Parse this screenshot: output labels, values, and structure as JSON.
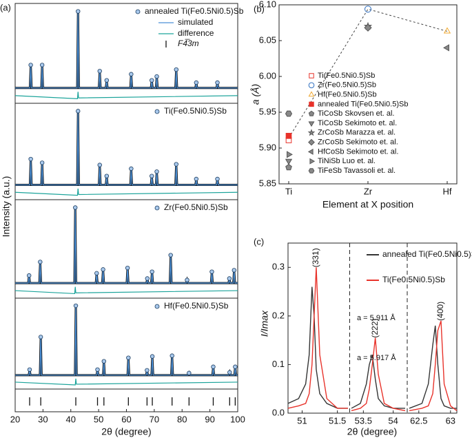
{
  "chart_data": [
    {
      "type": "xrd",
      "panel_label": "(a)",
      "xlabel": "2θ (degree)",
      "ylabel": "Intensity (a.u.)",
      "xlim": [
        20,
        100
      ],
      "xticks": [
        20,
        30,
        40,
        50,
        60,
        70,
        80,
        90,
        100
      ],
      "ylim": [
        -0.2,
        1.05
      ],
      "subplots": [
        {
          "observed": {
            "name": "annealed Ti(Fe0.5Ni0.5)Sb",
            "color": "#a8c8ec",
            "x": [
              25.6,
              29.7,
              42.6,
              50.4,
              52.9,
              61.7,
              69.1,
              70.9,
              77.9,
              85.1,
              92.7
            ],
            "values": [
              0.3,
              0.3,
              1,
              0.22,
              0.1,
              0.18,
              0.1,
              0.15,
              0.24,
              0.07,
              0.07
            ]
          },
          "simulated": {
            "name": "simulated",
            "color": "#4a8fd6",
            "x": [
              20,
              25.3,
              25.6,
              25.9,
              29.4,
              29.7,
              30.0,
              42.3,
              42.6,
              42.9,
              50.1,
              50.4,
              50.7,
              52.6,
              52.9,
              53.2,
              61.4,
              61.7,
              62.0,
              68.8,
              69.1,
              69.4,
              70.6,
              70.9,
              71.2,
              77.6,
              77.9,
              78.2,
              84.8,
              85.1,
              85.4,
              92.4,
              92.7,
              93.0,
              100
            ],
            "values": [
              0,
              0,
              0.3,
              0,
              0,
              0.3,
              0,
              0,
              1,
              0,
              0,
              0.22,
              0,
              0,
              0.1,
              0,
              0,
              0.18,
              0,
              0,
              0.1,
              0,
              0,
              0.15,
              0,
              0,
              0.24,
              0,
              0,
              0.07,
              0,
              0,
              0.07,
              0,
              0
            ]
          },
          "difference": {
            "name": "difference",
            "color": "#1aa39a",
            "x": [
              20,
              42.4,
              42.6,
              42.8,
              100
            ],
            "values": [
              -0.1,
              -0.14,
              -0.05,
              -0.13,
              -0.1
            ]
          }
        },
        {
          "observed": {
            "name": "Ti(Fe0.5Ni0.5)Sb",
            "color": "#a8c8ec",
            "x": [
              25.6,
              29.7,
              42.6,
              50.4,
              52.9,
              61.7,
              69.1,
              70.9,
              77.9,
              85.1,
              92.7
            ],
            "values": [
              0.35,
              0.3,
              1,
              0.27,
              0.12,
              0.22,
              0.12,
              0.18,
              0.28,
              0.08,
              0.08
            ]
          },
          "simulated": {
            "color": "#4a8fd6",
            "x": [
              20,
              25.3,
              25.6,
              25.9,
              29.4,
              29.7,
              30.0,
              42.3,
              42.6,
              42.9,
              50.1,
              50.4,
              50.7,
              52.6,
              52.9,
              53.2,
              61.4,
              61.7,
              62.0,
              68.8,
              69.1,
              69.4,
              70.6,
              70.9,
              71.2,
              77.6,
              77.9,
              78.2,
              84.8,
              85.1,
              85.4,
              92.4,
              92.7,
              93.0,
              100
            ],
            "values": [
              0,
              0,
              0.35,
              0,
              0,
              0.3,
              0,
              0,
              1,
              0,
              0,
              0.27,
              0,
              0,
              0.12,
              0,
              0,
              0.22,
              0,
              0,
              0.12,
              0,
              0,
              0.18,
              0,
              0,
              0.28,
              0,
              0,
              0.08,
              0,
              0,
              0.08,
              0,
              0
            ]
          },
          "difference": {
            "color": "#1aa39a",
            "x": [
              20,
              42.4,
              42.6,
              42.8,
              100
            ],
            "values": [
              -0.1,
              -0.14,
              -0.05,
              -0.13,
              -0.1
            ]
          }
        },
        {
          "observed": {
            "name": "Zr(Fe0.5Ni0.5)Sb",
            "color": "#a8c8ec",
            "x": [
              25.0,
              29.0,
              41.6,
              49.3,
              51.6,
              60.4,
              67.5,
              69.2,
              75.9,
              81.8,
              90.7,
              97.0,
              98.7
            ],
            "values": [
              0.1,
              0.28,
              1,
              0.13,
              0.18,
              0.2,
              0.06,
              0.15,
              0.37,
              0.04,
              0.15,
              0.06,
              0.17
            ]
          },
          "simulated": {
            "color": "#4a8fd6",
            "x": [
              20,
              24.7,
              25,
              25.3,
              28.7,
              29,
              29.3,
              41.3,
              41.6,
              41.9,
              49,
              49.3,
              49.6,
              51.3,
              51.6,
              51.9,
              60.1,
              60.4,
              60.7,
              67.2,
              67.5,
              67.8,
              68.9,
              69.2,
              69.5,
              75.6,
              75.9,
              76.2,
              81.5,
              81.8,
              82.1,
              90.4,
              90.7,
              91,
              96.7,
              97,
              97.3,
              98.4,
              98.7,
              99,
              100
            ],
            "values": [
              0,
              0,
              0.1,
              0,
              0,
              0.28,
              0,
              0,
              1,
              0,
              0,
              0.13,
              0,
              0,
              0.18,
              0,
              0,
              0.2,
              0,
              0,
              0.06,
              0,
              0,
              0.15,
              0,
              0,
              0.37,
              0,
              0,
              0.04,
              0,
              0,
              0.15,
              0,
              0,
              0.06,
              0,
              0,
              0.17,
              0,
              0
            ]
          },
          "difference": {
            "color": "#1aa39a",
            "x": [
              20,
              41.4,
              41.6,
              41.8,
              100
            ],
            "values": [
              -0.1,
              -0.14,
              -0.05,
              -0.13,
              -0.1
            ]
          }
        },
        {
          "observed": {
            "name": "Hf(Fe0.5Ni0.5)Sb",
            "color": "#a8c8ec",
            "x": [
              25.2,
              29.2,
              41.8,
              49.6,
              51.9,
              60.7,
              67.4,
              69.3,
              76.4,
              82.5,
              91.2,
              97.1,
              99.1
            ],
            "values": [
              0.08,
              0.55,
              1,
              0.08,
              0.2,
              0.25,
              0.07,
              0.27,
              0.28,
              0.03,
              0.12,
              0.04,
              0.12
            ]
          },
          "simulated": {
            "color": "#4a8fd6",
            "x": [
              20,
              24.9,
              25.2,
              25.5,
              28.9,
              29.2,
              29.5,
              41.5,
              41.8,
              42.1,
              49.3,
              49.6,
              49.9,
              51.6,
              51.9,
              52.2,
              60.4,
              60.7,
              61,
              67.1,
              67.4,
              67.7,
              69,
              69.3,
              69.6,
              76.1,
              76.4,
              76.7,
              82.2,
              82.5,
              82.8,
              90.9,
              91.2,
              91.5,
              96.8,
              97.1,
              97.4,
              98.8,
              99.1,
              99.4,
              100
            ],
            "values": [
              0,
              0,
              0.08,
              0,
              0,
              0.55,
              0,
              0,
              1,
              0,
              0,
              0.08,
              0,
              0,
              0.2,
              0,
              0,
              0.25,
              0,
              0,
              0.07,
              0,
              0,
              0.27,
              0,
              0,
              0.28,
              0,
              0,
              0.03,
              0,
              0,
              0.12,
              0,
              0,
              0.04,
              0,
              0,
              0.12,
              0,
              0
            ]
          },
          "difference": {
            "color": "#1aa39a",
            "x": [
              20,
              41.6,
              41.8,
              42.0,
              100
            ],
            "values": [
              -0.1,
              -0.14,
              -0.05,
              -0.13,
              -0.1
            ]
          }
        }
      ],
      "reflections": {
        "name": "F4̅3m",
        "color": "#111",
        "x": [
          25.2,
          29.2,
          41.8,
          49.6,
          51.9,
          60.7,
          67.4,
          69.3,
          76.4,
          82.5,
          91.2,
          97.1,
          99.1
        ]
      }
    },
    {
      "type": "scatter",
      "panel_label": "(b)",
      "xlabel": "Element at X position",
      "ylabel": "a (Å)",
      "categories": [
        "Ti",
        "Zr",
        "Hf"
      ],
      "ylim": [
        5.85,
        6.1
      ],
      "yticks": [
        {
          "value": 5.85,
          "label": "5.85"
        },
        {
          "value": 5.9,
          "label": "5.90"
        },
        {
          "value": 5.95,
          "label": "5.95"
        },
        {
          "value": 6.0,
          "label": "6.00"
        },
        {
          "value": 6.05,
          "label": "6.05"
        },
        {
          "value": 6.1,
          "label": "6.10"
        }
      ],
      "dashed_line_values": [
        5.914,
        6.094,
        6.063
      ],
      "series": [
        {
          "name": "Ti(Fe0.5Ni0.5)Sb",
          "color": "#e8322a",
          "marker": "square",
          "filled": false,
          "category": "Ti",
          "values": [
            5.911
          ]
        },
        {
          "name": "Zr(Fe0.5Ni0.5)Sb",
          "color": "#2f6fc0",
          "marker": "circle",
          "filled": false,
          "category": "Zr",
          "values": [
            6.094
          ]
        },
        {
          "name": "Hf(Fe0.5Ni0.5)Sb",
          "color": "#f0a830",
          "marker": "triangle-up",
          "filled": false,
          "category": "Hf",
          "values": [
            6.063
          ]
        },
        {
          "name": "annealed Ti(Fe0.5Ni0.5)Sb",
          "color": "#e8322a",
          "marker": "square",
          "filled": true,
          "category": "Ti",
          "values": [
            5.917
          ]
        },
        {
          "name": "TiCoSb Skovsen et. al.",
          "color": "#888",
          "marker": "pentagon",
          "filled": true,
          "category": "Ti",
          "values": [
            5.873
          ]
        },
        {
          "name": "TiCoSb Sekimoto et. al.",
          "color": "#888",
          "marker": "triangle-down",
          "filled": true,
          "category": "Ti",
          "values": [
            5.882
          ]
        },
        {
          "name": "ZrCoSb Marazza et. al.",
          "color": "#888",
          "marker": "star",
          "filled": true,
          "category": "Zr",
          "values": [
            6.07
          ]
        },
        {
          "name": "ZrCoSb Sekimoto et. al.",
          "color": "#888",
          "marker": "diamond",
          "filled": true,
          "category": "Zr",
          "values": [
            6.068
          ]
        },
        {
          "name": "HfCoSb Sekimoto et. al.",
          "color": "#888",
          "marker": "triangle-left",
          "filled": true,
          "category": "Hf",
          "values": [
            6.04
          ]
        },
        {
          "name": "TiNiSb Luo et. al.",
          "color": "#888",
          "marker": "triangle-right",
          "filled": true,
          "category": "Ti",
          "values": [
            5.891
          ]
        },
        {
          "name": "TiFeSb Tavassoli et. al.",
          "color": "#888",
          "marker": "hexagon",
          "filled": true,
          "category": "Ti",
          "values": [
            5.948
          ]
        }
      ]
    },
    {
      "type": "broken-line",
      "panel_label": "(c)",
      "xlabel": "2θ (degree)",
      "ylabel": "I/Imax",
      "ylim": [
        0,
        0.35
      ],
      "yticks": [
        {
          "value": 0,
          "label": "0.0"
        },
        0.1,
        0.2,
        0.3
      ],
      "legend": [
        {
          "name": "annealed Ti(Fe0.5Ni0.5)Sb",
          "color": "#333"
        },
        {
          "name": "Ti(Fe0.5Ni0.5)Sb",
          "color": "#e8322a"
        }
      ],
      "panels": [
        {
          "xlim": [
            50.8,
            51.65
          ],
          "xticks": [
            51,
            51.5
          ],
          "label": "(331)",
          "x": [
            50.8,
            50.95,
            51.05,
            51.1,
            51.14,
            51.17,
            51.2,
            51.25,
            51.35,
            51.5,
            51.65
          ],
          "series": [
            {
              "color": "#333",
              "values": [
                0.02,
                0.03,
                0.06,
                0.12,
                0.26,
                0.2,
                0.09,
                0.04,
                0.02,
                0.01,
                0.01
              ]
            },
            {
              "color": "#e8322a",
              "values": [
                0.01,
                0.015,
                0.02,
                0.04,
                0.1,
                0.2,
                0.3,
                0.12,
                0.03,
                0.01,
                0.01
              ]
            }
          ]
        },
        {
          "xlim": [
            53.3,
            54.2
          ],
          "xticks": [
            53.5,
            54
          ],
          "label": "(222)",
          "annotations": [
            "a = 5.911 Å",
            "a = 5.917 Å"
          ],
          "x": [
            53.3,
            53.45,
            53.55,
            53.6,
            53.65,
            53.7,
            53.75,
            53.85,
            54,
            54.2
          ],
          "series": [
            {
              "color": "#333",
              "values": [
                0.01,
                0.02,
                0.06,
                0.1,
                0.12,
                0.07,
                0.03,
                0.015,
                0.01,
                0.01
              ]
            },
            {
              "color": "#e8322a",
              "values": [
                0.005,
                0.01,
                0.02,
                0.05,
                0.1,
                0.155,
                0.08,
                0.02,
                0.01,
                0.005
              ]
            }
          ]
        },
        {
          "xlim": [
            62.35,
            63.1
          ],
          "xticks": [
            62.5,
            63
          ],
          "label": "(400)",
          "x": [
            62.35,
            62.55,
            62.65,
            62.72,
            62.76,
            62.8,
            62.85,
            62.9,
            63.0,
            63.1
          ],
          "series": [
            {
              "color": "#333",
              "values": [
                0.01,
                0.02,
                0.06,
                0.14,
                0.18,
                0.1,
                0.03,
                0.015,
                0.01,
                0.01
              ]
            },
            {
              "color": "#e8322a",
              "values": [
                0.005,
                0.01,
                0.015,
                0.04,
                0.1,
                0.17,
                0.19,
                0.06,
                0.015,
                0.005
              ]
            }
          ]
        }
      ]
    }
  ]
}
